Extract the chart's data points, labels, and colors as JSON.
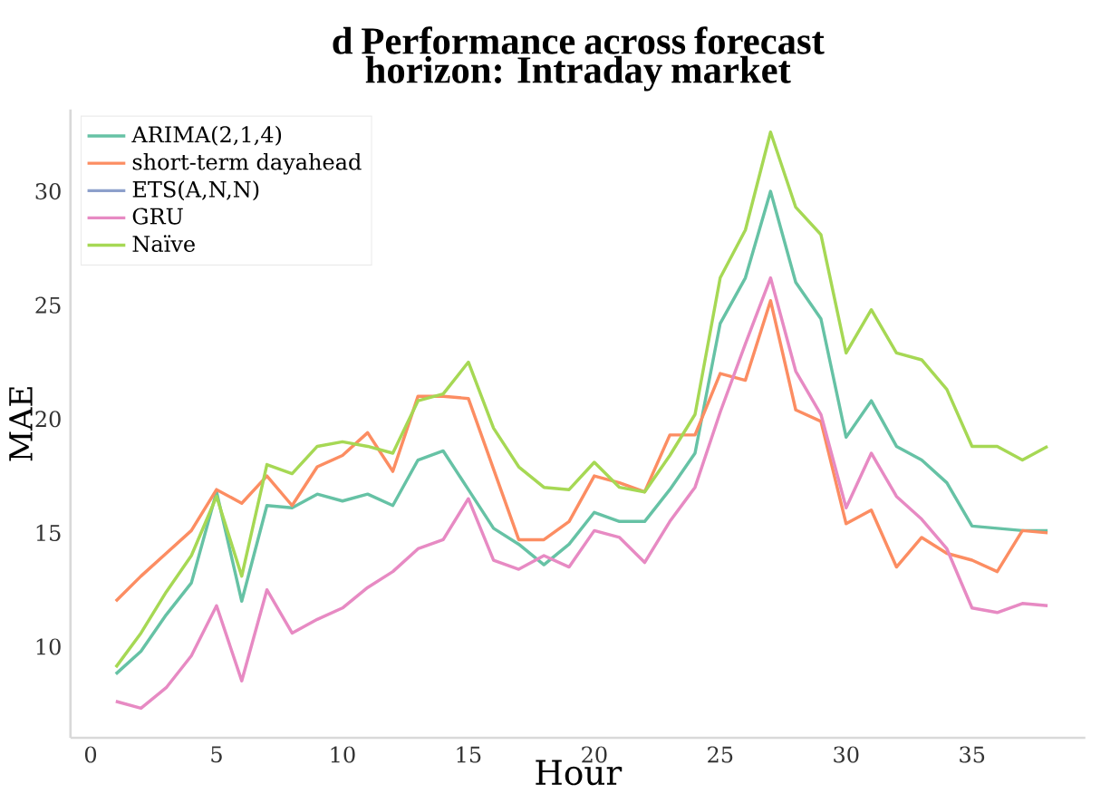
{
  "chart_data": {
    "type": "line",
    "title": "d  Performance across forecast horizon: Intraday market",
    "xlabel": "Hour",
    "ylabel": "MAE",
    "x": [
      1,
      2,
      3,
      4,
      5,
      6,
      7,
      8,
      9,
      10,
      11,
      12,
      13,
      14,
      15,
      16,
      17,
      18,
      19,
      20,
      21,
      22,
      23,
      24,
      25,
      26,
      27,
      28,
      29,
      30,
      31,
      32,
      33,
      34,
      35,
      36,
      37,
      38
    ],
    "series": [
      {
        "name": "ARIMA(2,1,4)",
        "color": "#66c2a5",
        "values": [
          8.8,
          9.8,
          11.4,
          12.8,
          16.8,
          12.0,
          16.2,
          16.1,
          16.7,
          16.4,
          16.7,
          16.2,
          18.2,
          18.6,
          16.9,
          15.2,
          14.5,
          13.6,
          14.5,
          15.9,
          15.5,
          15.5,
          16.9,
          18.5,
          24.2,
          26.2,
          30.0,
          26.0,
          24.4,
          19.2,
          20.8,
          18.8,
          18.2,
          17.2,
          15.3,
          15.2,
          15.1,
          15.1
        ]
      },
      {
        "name": "short-term dayahead",
        "color": "#fc8d62",
        "values": [
          12.0,
          13.1,
          14.1,
          15.1,
          16.9,
          16.3,
          17.5,
          16.2,
          17.9,
          18.4,
          19.4,
          17.7,
          21.0,
          21.0,
          20.9,
          17.8,
          14.7,
          14.7,
          15.5,
          17.5,
          17.2,
          16.8,
          19.3,
          19.3,
          22.0,
          21.7,
          25.2,
          20.4,
          19.9,
          15.4,
          16.0,
          13.5,
          14.8,
          14.1,
          13.8,
          13.3,
          15.1,
          15.0
        ]
      },
      {
        "name": "ETS(A,N,N)",
        "color": "#8da0cb",
        "values": [
          null,
          null,
          null,
          null,
          null,
          null,
          null,
          null,
          null,
          null,
          null,
          null,
          null,
          null,
          null,
          null,
          null,
          null,
          null,
          null,
          null,
          null,
          null,
          null,
          null,
          null,
          null,
          null,
          null,
          null,
          null,
          null,
          null,
          null,
          null,
          null,
          null,
          null
        ]
      },
      {
        "name": "GRU",
        "color": "#e78ac3",
        "values": [
          7.6,
          7.3,
          8.2,
          9.6,
          11.8,
          8.5,
          12.5,
          10.6,
          11.2,
          11.7,
          12.6,
          13.3,
          14.3,
          14.7,
          16.5,
          13.8,
          13.4,
          14.0,
          13.5,
          15.1,
          14.8,
          13.7,
          15.5,
          17.0,
          20.3,
          23.3,
          26.2,
          22.1,
          20.2,
          16.1,
          18.5,
          16.6,
          15.6,
          14.3,
          11.7,
          11.5,
          11.9,
          11.8
        ]
      },
      {
        "name": "Naïve",
        "color": "#a6d854",
        "values": [
          9.1,
          10.6,
          12.4,
          14.0,
          16.6,
          13.1,
          18.0,
          17.6,
          18.8,
          19.0,
          18.8,
          18.5,
          20.8,
          21.1,
          22.5,
          19.6,
          17.9,
          17.0,
          16.9,
          18.1,
          17.0,
          16.8,
          18.4,
          20.2,
          26.2,
          28.3,
          32.6,
          29.3,
          28.1,
          22.9,
          24.8,
          22.9,
          22.6,
          21.3,
          18.8,
          18.8,
          18.2,
          18.8
        ]
      }
    ],
    "xlim": [
      -0.8,
      39.5
    ],
    "ylim": [
      6,
      33.6
    ],
    "xticks": [
      0,
      5,
      10,
      15,
      20,
      25,
      30,
      35
    ],
    "yticks": [
      10,
      15,
      20,
      25,
      30
    ],
    "legend": "top left",
    "marker": "none",
    "line_style": "solid"
  }
}
